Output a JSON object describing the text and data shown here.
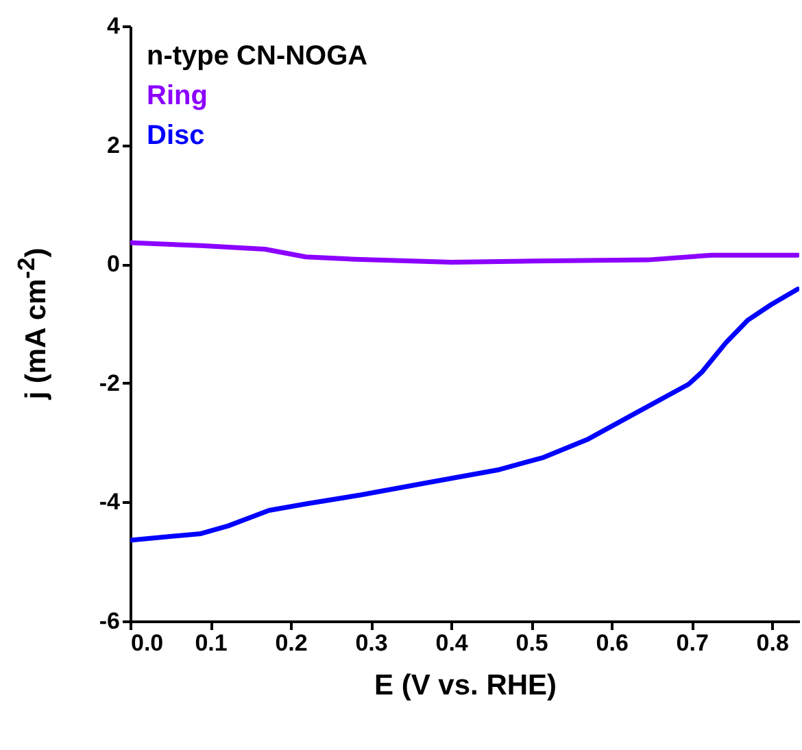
{
  "chart_data": {
    "type": "line",
    "xlabel": "E (V vs. RHE)",
    "ylabel": "j (mA cm$^{-2}$)",
    "legend_title": "n-type CN-NOGA",
    "legend": "top left",
    "xlim": [
      0,
      0.834
    ],
    "xticks": [
      {
        "value": 0,
        "label": "0.0"
      },
      0.1,
      0.2,
      0.3,
      0.4,
      0.5,
      0.6,
      0.7,
      0.8
    ],
    "ylim": [
      -6,
      4
    ],
    "yticks": [
      -6,
      -4,
      -2,
      0,
      2,
      4
    ],
    "grid": false,
    "marker": "none",
    "line_style": "solid",
    "series": [
      {
        "name": "Ring",
        "color": "#8b00ff",
        "x": [
          0,
          0.088,
          0.168,
          0.219,
          0.281,
          0.401,
          0.503,
          0.645,
          0.725,
          0.832
        ],
        "values": [
          0.36,
          0.31,
          0.25,
          0.12,
          0.08,
          0.03,
          0.05,
          0.07,
          0.15,
          0.15
        ]
      },
      {
        "name": "Disc",
        "color": "#0000ff",
        "x": [
          0,
          0.088,
          0.122,
          0.173,
          0.219,
          0.287,
          0.372,
          0.458,
          0.515,
          0.571,
          0.628,
          0.696,
          0.713,
          0.742,
          0.77,
          0.799,
          0.832
        ],
        "values": [
          -4.64,
          -4.53,
          -4.4,
          -4.14,
          -4.03,
          -3.88,
          -3.67,
          -3.46,
          -3.25,
          -2.94,
          -2.52,
          -2.02,
          -1.81,
          -1.33,
          -0.94,
          -0.68,
          -0.42
        ]
      }
    ]
  }
}
